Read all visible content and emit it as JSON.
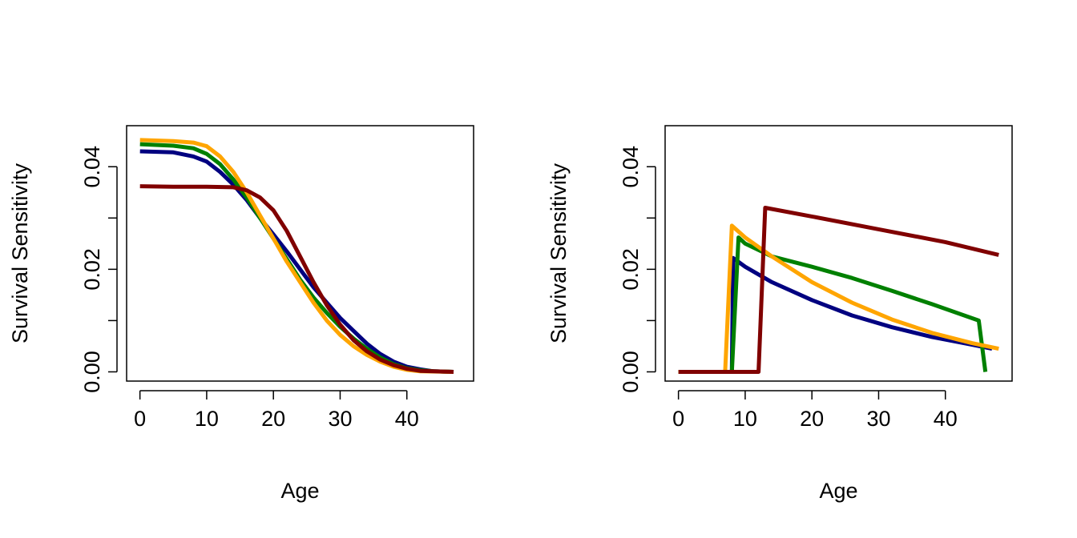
{
  "chart_data": [
    {
      "type": "line",
      "title": "",
      "xlabel": "Age",
      "ylabel": "Survival Sensitivity",
      "xlim": [
        -2,
        50
      ],
      "ylim": [
        -0.0018,
        0.048
      ],
      "xticks": [
        "0",
        "10",
        "20",
        "30",
        "40"
      ],
      "yticks": [
        "0.00",
        "0.02",
        "0.04"
      ],
      "grid": false,
      "series": [
        {
          "color": "#000080",
          "points": [
            [
              0,
              0.043
            ],
            [
              5,
              0.0428
            ],
            [
              8,
              0.042
            ],
            [
              10,
              0.041
            ],
            [
              12,
              0.039
            ],
            [
              14,
              0.0365
            ],
            [
              16,
              0.0335
            ],
            [
              18,
              0.03
            ],
            [
              20,
              0.0268
            ],
            [
              22,
              0.0235
            ],
            [
              24,
              0.02
            ],
            [
              26,
              0.0165
            ],
            [
              28,
              0.0135
            ],
            [
              30,
              0.0105
            ],
            [
              32,
              0.008
            ],
            [
              34,
              0.0055
            ],
            [
              36,
              0.0035
            ],
            [
              38,
              0.002
            ],
            [
              40,
              0.001
            ],
            [
              42,
              0.0005
            ],
            [
              44,
              0.0001
            ],
            [
              47,
              0.0
            ]
          ]
        },
        {
          "color": "#008000",
          "points": [
            [
              0,
              0.0444
            ],
            [
              5,
              0.0441
            ],
            [
              8,
              0.0436
            ],
            [
              10,
              0.0425
            ],
            [
              12,
              0.0405
            ],
            [
              14,
              0.0375
            ],
            [
              16,
              0.034
            ],
            [
              18,
              0.03
            ],
            [
              20,
              0.026
            ],
            [
              22,
              0.022
            ],
            [
              24,
              0.018
            ],
            [
              26,
              0.0145
            ],
            [
              28,
              0.0115
            ],
            [
              30,
              0.0088
            ],
            [
              32,
              0.0065
            ],
            [
              34,
              0.0045
            ],
            [
              36,
              0.0028
            ],
            [
              38,
              0.0015
            ],
            [
              40,
              0.0007
            ],
            [
              42,
              0.0003
            ],
            [
              44,
              0.0001
            ],
            [
              47,
              0.0
            ]
          ]
        },
        {
          "color": "#FFA500",
          "points": [
            [
              0,
              0.0452
            ],
            [
              5,
              0.045
            ],
            [
              8,
              0.0447
            ],
            [
              10,
              0.044
            ],
            [
              12,
              0.042
            ],
            [
              14,
              0.039
            ],
            [
              16,
              0.035
            ],
            [
              18,
              0.0305
            ],
            [
              20,
              0.026
            ],
            [
              22,
              0.0215
            ],
            [
              24,
              0.0175
            ],
            [
              26,
              0.0135
            ],
            [
              28,
              0.01
            ],
            [
              30,
              0.0072
            ],
            [
              32,
              0.005
            ],
            [
              34,
              0.0033
            ],
            [
              36,
              0.002
            ],
            [
              38,
              0.001
            ],
            [
              40,
              0.0004
            ],
            [
              42,
              0.0001
            ],
            [
              47,
              0.0
            ]
          ]
        },
        {
          "color": "#800000",
          "points": [
            [
              0,
              0.0362
            ],
            [
              5,
              0.0361
            ],
            [
              10,
              0.0361
            ],
            [
              14,
              0.036
            ],
            [
              16,
              0.0354
            ],
            [
              18,
              0.034
            ],
            [
              20,
              0.0315
            ],
            [
              22,
              0.0275
            ],
            [
              24,
              0.0225
            ],
            [
              26,
              0.0175
            ],
            [
              28,
              0.013
            ],
            [
              30,
              0.0092
            ],
            [
              32,
              0.0062
            ],
            [
              34,
              0.004
            ],
            [
              36,
              0.0024
            ],
            [
              38,
              0.0013
            ],
            [
              40,
              0.0006
            ],
            [
              42,
              0.0002
            ],
            [
              44,
              0.0001
            ],
            [
              47,
              0.0
            ]
          ]
        }
      ]
    },
    {
      "type": "line",
      "title": "",
      "xlabel": "Age",
      "ylabel": "Survival Sensitivity",
      "xlim": [
        -2,
        50
      ],
      "ylim": [
        -0.0018,
        0.048
      ],
      "xticks": [
        "0",
        "10",
        "20",
        "30",
        "40"
      ],
      "yticks": [
        "0.00",
        "0.02",
        "0.04"
      ],
      "grid": false,
      "series": [
        {
          "color": "#000080",
          "points": [
            [
              0,
              0
            ],
            [
              8,
              0
            ],
            [
              8.2,
              0.0222
            ],
            [
              10,
              0.0205
            ],
            [
              14,
              0.0175
            ],
            [
              20,
              0.014
            ],
            [
              26,
              0.011
            ],
            [
              32,
              0.0087
            ],
            [
              38,
              0.0068
            ],
            [
              44,
              0.0053
            ],
            [
              47,
              0.0045
            ]
          ]
        },
        {
          "color": "#008000",
          "points": [
            [
              0,
              0
            ],
            [
              8,
              0
            ],
            [
              9,
              0.0262
            ],
            [
              10,
              0.025
            ],
            [
              14,
              0.0225
            ],
            [
              20,
              0.0205
            ],
            [
              26,
              0.0183
            ],
            [
              32,
              0.0158
            ],
            [
              38,
              0.0132
            ],
            [
              45,
              0.01
            ],
            [
              46,
              0.0
            ]
          ]
        },
        {
          "color": "#FFA500",
          "points": [
            [
              0,
              0
            ],
            [
              7,
              0
            ],
            [
              8,
              0.0285
            ],
            [
              10,
              0.0262
            ],
            [
              14,
              0.0225
            ],
            [
              20,
              0.0175
            ],
            [
              26,
              0.0135
            ],
            [
              32,
              0.0102
            ],
            [
              38,
              0.0076
            ],
            [
              44,
              0.0056
            ],
            [
              48,
              0.0045
            ]
          ]
        },
        {
          "color": "#800000",
          "points": [
            [
              0,
              0
            ],
            [
              12,
              0
            ],
            [
              13,
              0.032
            ],
            [
              20,
              0.0303
            ],
            [
              30,
              0.0278
            ],
            [
              40,
              0.0253
            ],
            [
              48,
              0.0228
            ]
          ]
        }
      ]
    }
  ]
}
